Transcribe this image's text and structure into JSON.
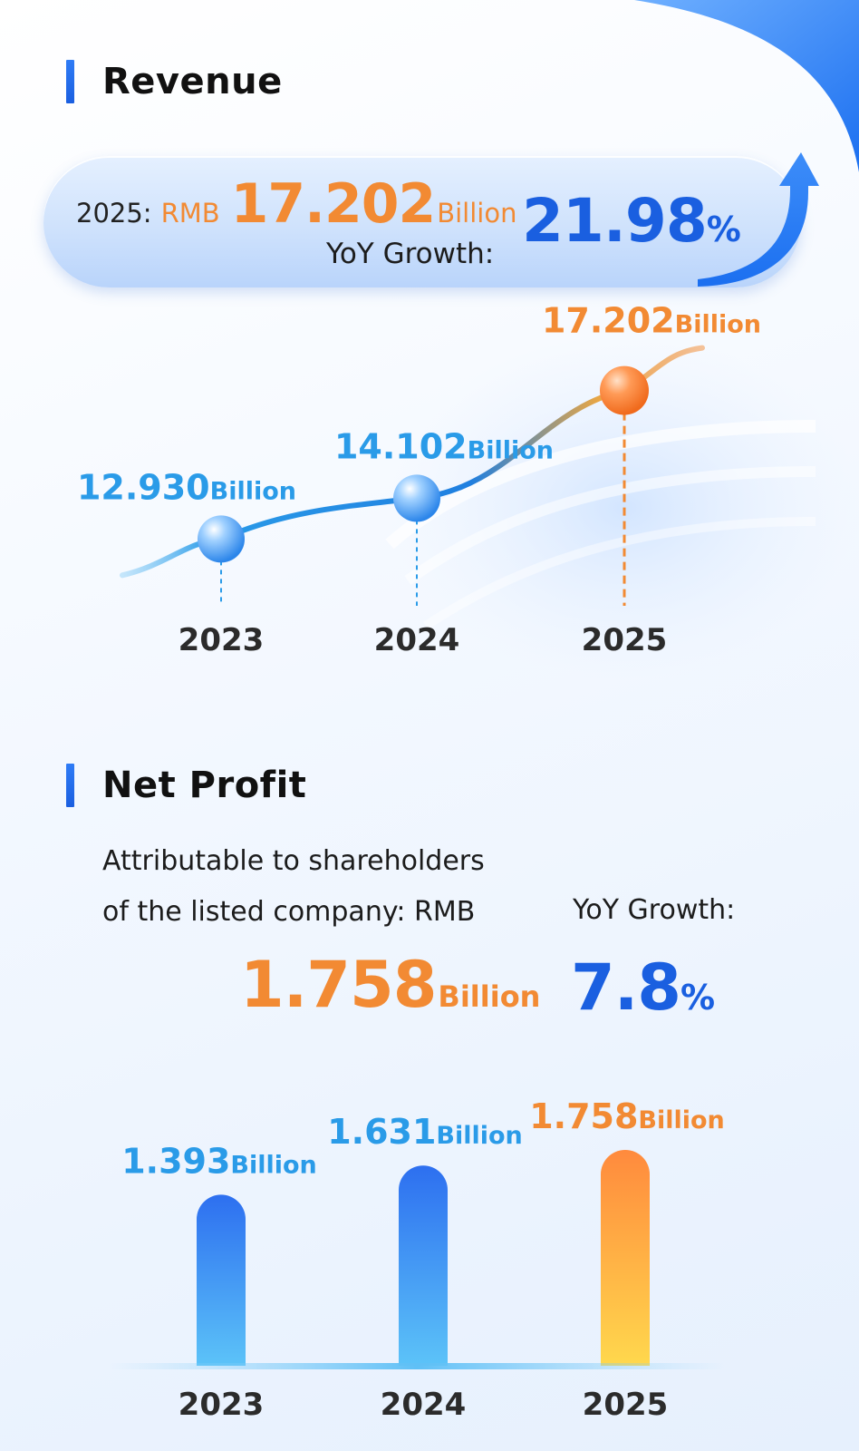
{
  "revenue": {
    "title": "Revenue",
    "year_label": "2025:",
    "currency": "RMB",
    "value": "17.202",
    "unit": "Billion",
    "yoy_label": "YoY Growth:",
    "yoy_value": "21.98",
    "yoy_symbol": "%"
  },
  "net_profit": {
    "title": "Net Profit",
    "desc_line1": "Attributable to shareholders",
    "desc_line2": "of the listed company: RMB",
    "value": "1.758",
    "unit": "Billion",
    "yoy_label": "YoY Growth:",
    "yoy_value": "7.8",
    "yoy_symbol": "%"
  },
  "colors": {
    "blue": "#1a5fe0",
    "light_blue": "#2a9be8",
    "orange": "#f28a33"
  },
  "chart_data": [
    {
      "type": "line",
      "categories": [
        "2023",
        "2024",
        "2025"
      ],
      "values": [
        12.93,
        14.102,
        17.202
      ],
      "value_labels": [
        "12.930",
        "14.102",
        "17.202"
      ],
      "unit": "Billion",
      "highlight_color": "#f28a33",
      "base_color": "#2a9be8"
    },
    {
      "type": "bar",
      "categories": [
        "2023",
        "2024",
        "2025"
      ],
      "values": [
        1.393,
        1.631,
        1.758
      ],
      "value_labels": [
        "1.393",
        "1.631",
        "1.758"
      ],
      "unit": "Billion",
      "highlight_color": "#f28a33",
      "base_color": "#2a9be8"
    }
  ]
}
